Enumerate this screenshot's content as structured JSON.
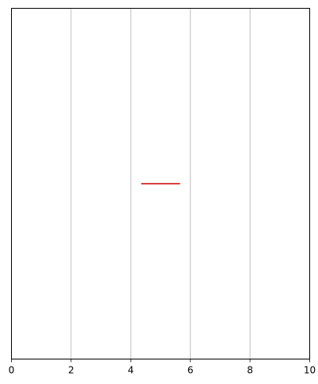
{
  "chart_data": {
    "type": "line",
    "title": "",
    "xlabel": "",
    "ylabel": "",
    "xlim": [
      0,
      10
    ],
    "ylim": [
      0,
      1
    ],
    "x_ticks": [
      0,
      2,
      4,
      6,
      8,
      10
    ],
    "x_tick_labels": [
      "0",
      "2",
      "4",
      "6",
      "8",
      "10"
    ],
    "y_ticks": [],
    "grid": {
      "x": true,
      "y": false
    },
    "series": [
      {
        "x": [
          4.35,
          5.65
        ],
        "y": [
          0.5,
          0.5
        ],
        "color": "#cc0000"
      }
    ]
  },
  "colors": {
    "grid": "#b0b0b0",
    "axis": "#000000",
    "background": "#ffffff"
  }
}
